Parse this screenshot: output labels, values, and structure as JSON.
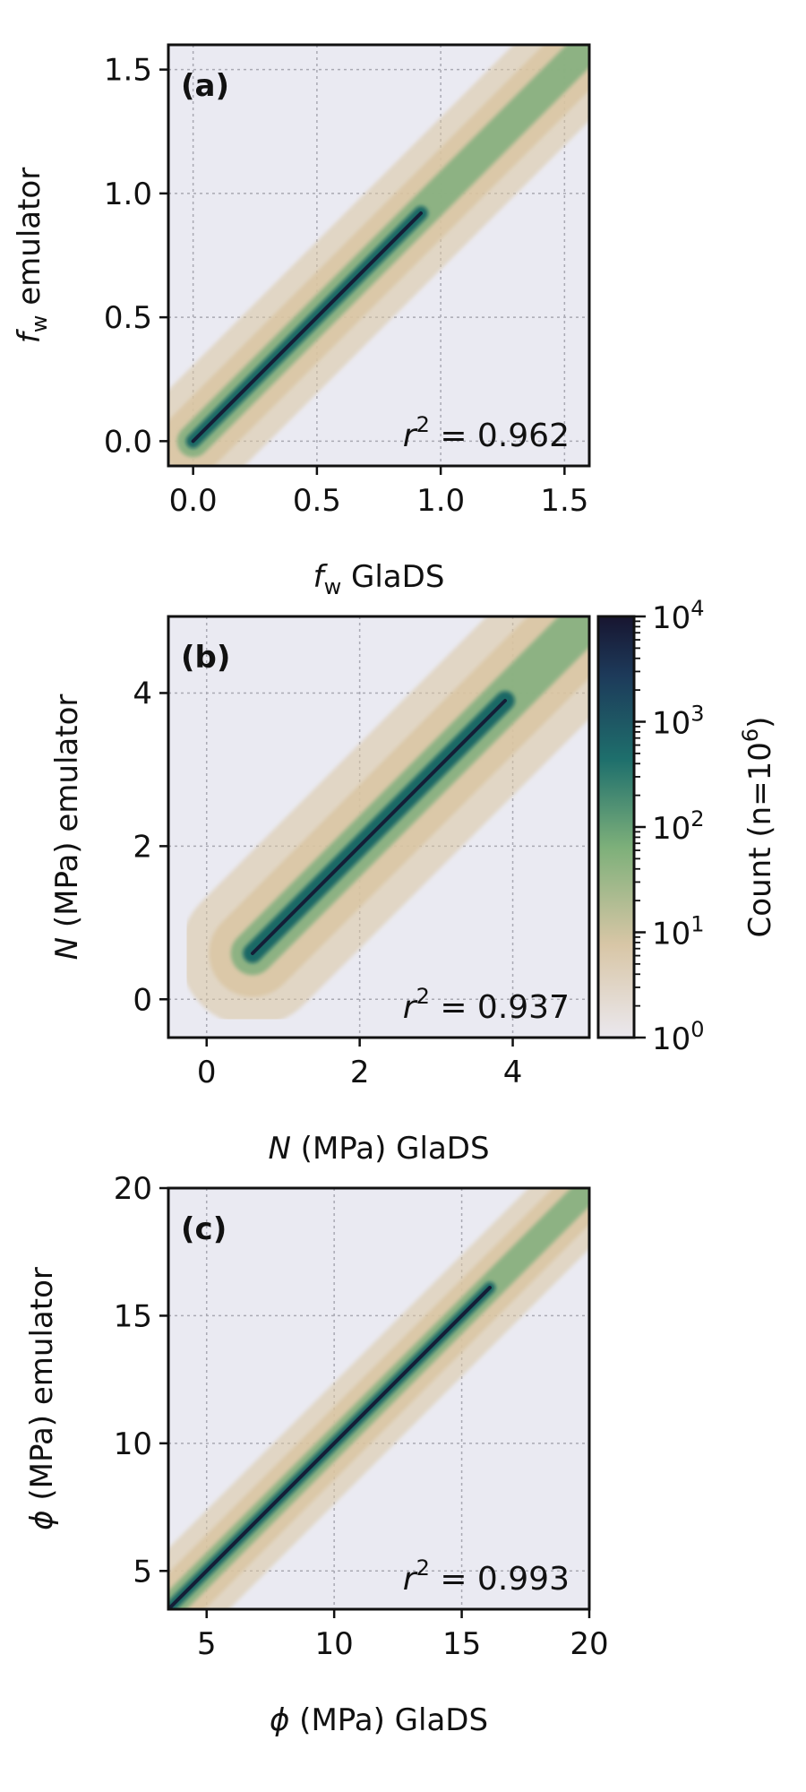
{
  "chart_data": [
    {
      "type": "hexbin",
      "panel_label": "(a)",
      "xlabel": {
        "symbol": "f",
        "subscript": "w",
        "rest": " GlaDS"
      },
      "ylabel": {
        "symbol": "f",
        "subscript": "w",
        "rest": " emulator"
      },
      "xlim": [
        -0.1,
        1.6
      ],
      "ylim": [
        -0.1,
        1.6
      ],
      "xticks": [
        0.0,
        0.5,
        1.0,
        1.5
      ],
      "yticks": [
        0.0,
        0.5,
        1.0,
        1.5
      ],
      "xtick_labels": [
        "0.0",
        "0.5",
        "1.0",
        "1.5"
      ],
      "ytick_labels": [
        "0.0",
        "0.5",
        "1.0",
        "1.5"
      ],
      "grid": true,
      "annotation": {
        "lhs": "r",
        "sup": "2",
        "rhs": " = 0.962"
      },
      "r2": 0.962,
      "density_ridge": {
        "from": [
          0.0,
          0.0
        ],
        "to": [
          1.6,
          1.6
        ],
        "core_end": 0.92
      }
    },
    {
      "type": "hexbin",
      "panel_label": "(b)",
      "xlabel": {
        "symbol": "N",
        "rest": " (MPa) GlaDS"
      },
      "ylabel": {
        "symbol": "N",
        "rest": " (MPa) emulator"
      },
      "xlim": [
        -0.5,
        5.0
      ],
      "ylim": [
        -0.5,
        5.0
      ],
      "xticks": [
        0,
        2,
        4
      ],
      "yticks": [
        0,
        2,
        4
      ],
      "xtick_labels": [
        "0",
        "2",
        "4"
      ],
      "ytick_labels": [
        "0",
        "2",
        "4"
      ],
      "grid": true,
      "annotation": {
        "lhs": "r",
        "sup": "2",
        "rhs": " = 0.937"
      },
      "r2": 0.937,
      "density_ridge": {
        "from": [
          0.6,
          0.6
        ],
        "to": [
          4.9,
          4.9
        ],
        "core_end": 3.9
      }
    },
    {
      "type": "hexbin",
      "panel_label": "(c)",
      "xlabel": {
        "symbol": "ϕ",
        "rest": " (MPa) GlaDS"
      },
      "ylabel": {
        "symbol": "ϕ",
        "rest": " (MPa) emulator"
      },
      "xlim": [
        3.5,
        20.0
      ],
      "ylim": [
        3.5,
        20.0
      ],
      "xticks": [
        5,
        10,
        15,
        20
      ],
      "yticks": [
        5,
        10,
        15,
        20
      ],
      "xtick_labels": [
        "5",
        "10",
        "15",
        "20"
      ],
      "ytick_labels": [
        "5",
        "10",
        "15",
        "20"
      ],
      "grid": true,
      "annotation": {
        "lhs": "r",
        "sup": "2",
        "rhs": " = 0.993"
      },
      "r2": 0.993,
      "density_ridge": {
        "from": [
          3.5,
          3.5
        ],
        "to": [
          20.0,
          20.0
        ],
        "core_end": 16.1
      }
    }
  ],
  "colorbar": {
    "label_main": "Count (n=10",
    "label_sup": "6",
    "label_end": ")",
    "scale": "log",
    "range": [
      1,
      10000
    ],
    "tick_base": "10",
    "tick_exponents": [
      "0",
      "1",
      "2",
      "3",
      "4"
    ],
    "colors": [
      "#ebe8ee",
      "#d8c6a6",
      "#7eb07a",
      "#1e6f6c",
      "#1d3a5a",
      "#171530"
    ]
  },
  "colors": {
    "axes_background": "#eaeaf2",
    "grid": "#a9a9b3",
    "light_hex": "#d9c4a0",
    "mid_hex": "#7fae7c",
    "dark_hex": "#0f5f63",
    "core": "#141a35"
  }
}
